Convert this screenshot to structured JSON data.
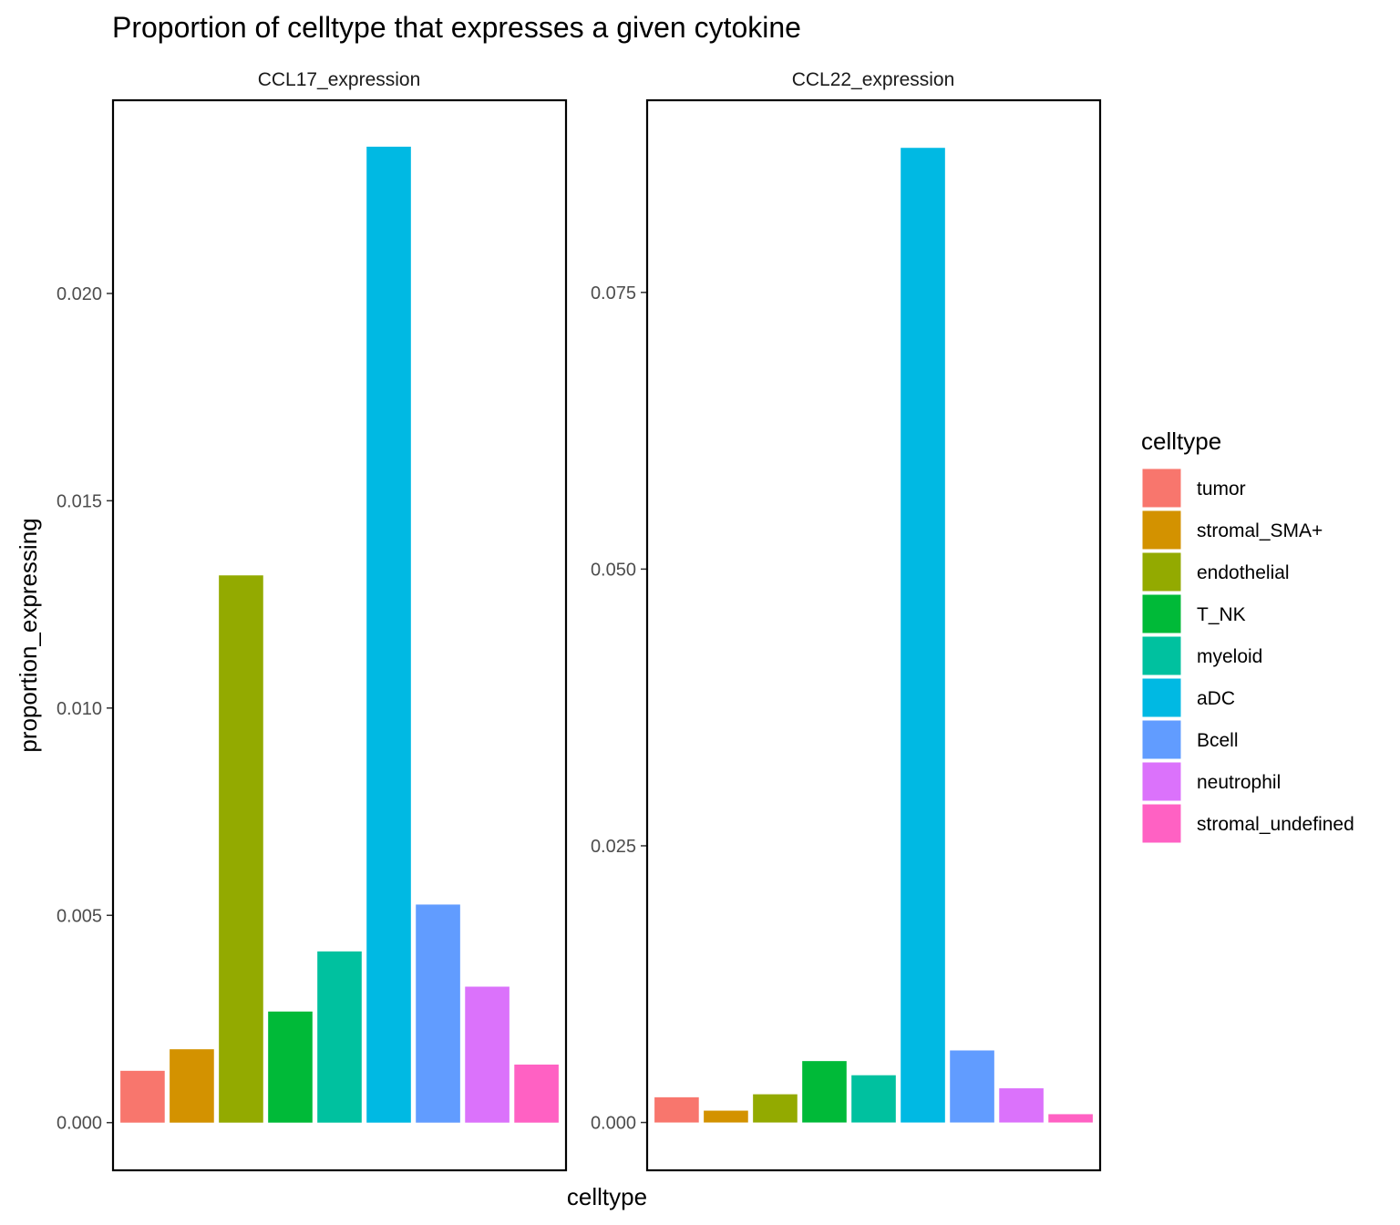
{
  "chart_data": {
    "type": "bar",
    "title": "Proportion of celltype that expresses a given cytokine",
    "xlabel": "celltype",
    "ylabel": "proportion_expressing",
    "categories": [
      "tumor",
      "stromal_SMA+",
      "endothelial",
      "T_NK",
      "myeloid",
      "aDC",
      "Bcell",
      "neutrophil",
      "stromal_undefined"
    ],
    "colors": [
      "#F8766D",
      "#D39200",
      "#93AA00",
      "#00BA38",
      "#00C19F",
      "#00B9E3",
      "#619CFF",
      "#DB72FB",
      "#FF61C3"
    ],
    "grid": false,
    "legend": {
      "title": "celltype",
      "position": "right"
    },
    "facets": [
      {
        "name": "CCL17_expression",
        "ylim": [
          -0.00115,
          0.02466
        ],
        "yticks": [
          0.0,
          0.005,
          0.01,
          0.015,
          0.02
        ],
        "ytick_labels": [
          "0.000",
          "0.005",
          "0.010",
          "0.015",
          "0.020"
        ],
        "values": [
          0.00125,
          0.00177,
          0.0132,
          0.00268,
          0.00413,
          0.02354,
          0.00526,
          0.00328,
          0.0014
        ]
      },
      {
        "name": "CCL22_expression",
        "ylim": [
          -0.00432,
          0.09236
        ],
        "yticks": [
          0.0,
          0.025,
          0.05,
          0.075
        ],
        "ytick_labels": [
          "0.000",
          "0.025",
          "0.050",
          "0.075"
        ],
        "values": [
          0.00228,
          0.00107,
          0.00255,
          0.00555,
          0.00427,
          0.08806,
          0.00651,
          0.00309,
          0.00075
        ]
      }
    ]
  }
}
